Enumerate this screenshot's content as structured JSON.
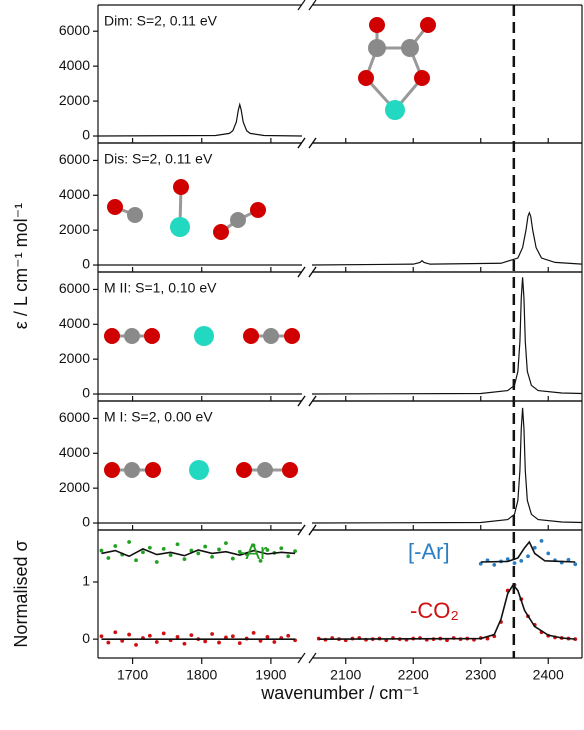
{
  "ylabel": "ε / L cm⁻¹ mol⁻¹",
  "reference_line": {
    "x": 2349
  },
  "chart_data": [
    {
      "type": "line",
      "label": "Dim: S=2, 0.11 eV",
      "xlim": [
        1650,
        2450
      ],
      "xbreak": [
        1945,
        2050
      ],
      "xticks": [
        1700,
        1800,
        1900,
        2100,
        2200,
        2300,
        2400
      ],
      "ylim": [
        -400,
        7500
      ],
      "yticks": [
        0,
        2000,
        4000,
        6000
      ],
      "series": [
        {
          "color": "#111111",
          "x": [
            1650,
            1820,
            1840,
            1845,
            1850,
            1853,
            1855,
            1857,
            1860,
            1865,
            1870,
            1890,
            1945
          ],
          "values": [
            0,
            30,
            150,
            300,
            800,
            1500,
            1800,
            1500,
            800,
            300,
            150,
            30,
            0
          ]
        }
      ]
    },
    {
      "type": "line",
      "label": "Dis: S=2, 0.11 eV",
      "xlim": [
        1650,
        2450
      ],
      "xbreak": [
        1945,
        2050
      ],
      "xticks": [
        1700,
        1800,
        1900,
        2100,
        2200,
        2300,
        2400
      ],
      "ylim": [
        -400,
        7000
      ],
      "yticks": [
        0,
        2000,
        4000,
        6000
      ],
      "series": [
        {
          "color": "#111111",
          "x": [
            1650,
            1945,
            null,
            2050,
            2200,
            2210,
            2213,
            2216,
            2225,
            2330,
            2355,
            2362,
            2367,
            2370,
            2372,
            2374,
            2377,
            2382,
            2390,
            2410,
            2450
          ],
          "values": [
            0,
            0,
            null,
            0,
            50,
            150,
            250,
            150,
            50,
            100,
            400,
            1000,
            2000,
            2800,
            3000,
            2800,
            2000,
            1000,
            400,
            150,
            50
          ]
        }
      ]
    },
    {
      "type": "line",
      "label": "M II: S=1, 0.10 eV",
      "xlim": [
        1650,
        2450
      ],
      "xbreak": [
        1945,
        2050
      ],
      "xticks": [
        1700,
        1800,
        1900,
        2100,
        2200,
        2300,
        2400
      ],
      "ylim": [
        -400,
        7000
      ],
      "yticks": [
        0,
        2000,
        4000,
        6000
      ],
      "series": [
        {
          "color": "#111111",
          "x": [
            1650,
            1945,
            null,
            2050,
            2300,
            2340,
            2350,
            2355,
            2358,
            2360,
            2362,
            2364,
            2366,
            2369,
            2375,
            2385,
            2420,
            2450
          ],
          "values": [
            0,
            0,
            null,
            0,
            30,
            200,
            500,
            1300,
            3000,
            5500,
            6700,
            5500,
            3000,
            1300,
            500,
            200,
            60,
            30
          ]
        }
      ]
    },
    {
      "type": "line",
      "label": "M I: S=2, 0.00 eV",
      "xlim": [
        1650,
        2450
      ],
      "xbreak": [
        1945,
        2050
      ],
      "xticks": [
        1700,
        1800,
        1900,
        2100,
        2200,
        2300,
        2400
      ],
      "ylim": [
        -400,
        7000
      ],
      "yticks": [
        0,
        2000,
        4000,
        6000
      ],
      "series": [
        {
          "color": "#111111",
          "x": [
            1650,
            1945,
            null,
            2050,
            2300,
            2340,
            2350,
            2355,
            2358,
            2360,
            2362,
            2364,
            2366,
            2369,
            2375,
            2385,
            2420,
            2450
          ],
          "values": [
            0,
            0,
            null,
            0,
            30,
            200,
            500,
            1300,
            3000,
            5400,
            6600,
            5400,
            3000,
            1300,
            500,
            200,
            60,
            30
          ]
        }
      ]
    },
    {
      "type": "scatter",
      "ylabel": "Normalised σ",
      "xlabel": "wavenumber / cm⁻¹",
      "xlim": [
        1650,
        2450
      ],
      "xbreak": [
        1945,
        2050
      ],
      "xticks": [
        1700,
        1800,
        1900,
        2100,
        2200,
        2300,
        2400
      ],
      "ylim": [
        -0.33,
        1.91
      ],
      "yticks": [
        0,
        1
      ],
      "annotations": [
        {
          "text": "-Ar",
          "color": "#22a022"
        },
        {
          "text": "[-Ar]",
          "color": "#2a7fc4"
        },
        {
          "text": "-CO₂",
          "color": "#d01010"
        }
      ],
      "series": [
        {
          "mode": "markers",
          "color": "#22a022",
          "x": [
            1655,
            1665,
            1675,
            1685,
            1695,
            1705,
            1715,
            1725,
            1735,
            1745,
            1755,
            1765,
            1775,
            1785,
            1795,
            1805,
            1815,
            1825,
            1835,
            1845,
            1855,
            1865,
            1875,
            1885,
            1895,
            1905,
            1915,
            1925,
            1935
          ],
          "values": [
            1.55,
            1.42,
            1.63,
            1.48,
            1.7,
            1.38,
            1.52,
            1.6,
            1.35,
            1.58,
            1.47,
            1.66,
            1.4,
            1.55,
            1.5,
            1.62,
            1.44,
            1.57,
            1.68,
            1.41,
            1.53,
            1.49,
            1.64,
            1.37,
            1.56,
            1.51,
            1.59,
            1.45,
            1.54
          ]
        },
        {
          "mode": "line",
          "color": "#111111",
          "x": [
            1655,
            1675,
            1695,
            1715,
            1735,
            1755,
            1775,
            1795,
            1815,
            1835,
            1855,
            1875,
            1895,
            1915,
            1935
          ],
          "values": [
            1.5,
            1.55,
            1.45,
            1.58,
            1.48,
            1.52,
            1.46,
            1.56,
            1.5,
            1.53,
            1.47,
            1.55,
            1.49,
            1.52,
            1.5
          ]
        },
        {
          "mode": "markers",
          "color": "#2a7fc4",
          "x": [
            2300,
            2310,
            2320,
            2330,
            2340,
            2350,
            2360,
            2370,
            2380,
            2390,
            2400,
            2410,
            2420,
            2430,
            2440
          ],
          "values": [
            1.32,
            1.38,
            1.3,
            1.36,
            1.4,
            1.33,
            1.37,
            1.45,
            1.6,
            1.72,
            1.5,
            1.38,
            1.34,
            1.39,
            1.31
          ]
        },
        {
          "mode": "line",
          "color": "#111111",
          "x": [
            2300,
            2340,
            2355,
            2365,
            2372,
            2380,
            2395,
            2440
          ],
          "values": [
            1.35,
            1.36,
            1.42,
            1.6,
            1.7,
            1.5,
            1.37,
            1.35
          ]
        },
        {
          "mode": "markers",
          "color": "#d01010",
          "x": [
            1655,
            1665,
            1675,
            1685,
            1695,
            1705,
            1715,
            1725,
            1735,
            1745,
            1755,
            1765,
            1775,
            1785,
            1795,
            1805,
            1815,
            1825,
            1835,
            1845,
            1855,
            1865,
            1875,
            1885,
            1895,
            1905,
            1915,
            1925,
            1935
          ],
          "values": [
            0.05,
            -0.06,
            0.12,
            -0.03,
            0.08,
            -0.1,
            0.02,
            0.06,
            -0.05,
            0.1,
            -0.02,
            0.04,
            -0.08,
            0.07,
            0.0,
            -0.04,
            0.09,
            -0.06,
            0.03,
            0.05,
            -0.07,
            0.01,
            0.11,
            -0.03,
            0.04,
            -0.05,
            0.02,
            0.06,
            -0.02
          ]
        },
        {
          "mode": "markers",
          "color": "#d01010",
          "x": [
            2060,
            2070,
            2080,
            2090,
            2100,
            2110,
            2120,
            2130,
            2140,
            2150,
            2160,
            2170,
            2180,
            2190,
            2200,
            2210,
            2220,
            2230,
            2240,
            2250,
            2260,
            2270,
            2280,
            2290,
            2300,
            2310,
            2320,
            2330,
            2340,
            2350,
            2360,
            2370,
            2380,
            2390,
            2400,
            2410,
            2420,
            2430,
            2440
          ],
          "values": [
            0.01,
            -0.01,
            0.02,
            0.0,
            -0.02,
            0.01,
            0.02,
            -0.01,
            0.0,
            0.01,
            -0.02,
            0.02,
            0.0,
            -0.01,
            0.01,
            0.02,
            -0.01,
            0.0,
            0.01,
            -0.02,
            0.02,
            0.0,
            0.01,
            -0.01,
            0.02,
            0.01,
            0.05,
            0.3,
            0.85,
            0.95,
            0.7,
            0.4,
            0.25,
            0.12,
            0.06,
            0.03,
            0.02,
            0.01,
            0.0
          ]
        },
        {
          "mode": "line",
          "color": "#111111",
          "x": [
            1655,
            1935,
            null,
            2060,
            2300,
            2320,
            2330,
            2340,
            2348,
            2355,
            2365,
            2380,
            2400,
            2420,
            2440
          ],
          "values": [
            0,
            0,
            null,
            0,
            0.01,
            0.08,
            0.35,
            0.8,
            0.95,
            0.85,
            0.5,
            0.22,
            0.07,
            0.02,
            0.0
          ]
        }
      ]
    }
  ]
}
